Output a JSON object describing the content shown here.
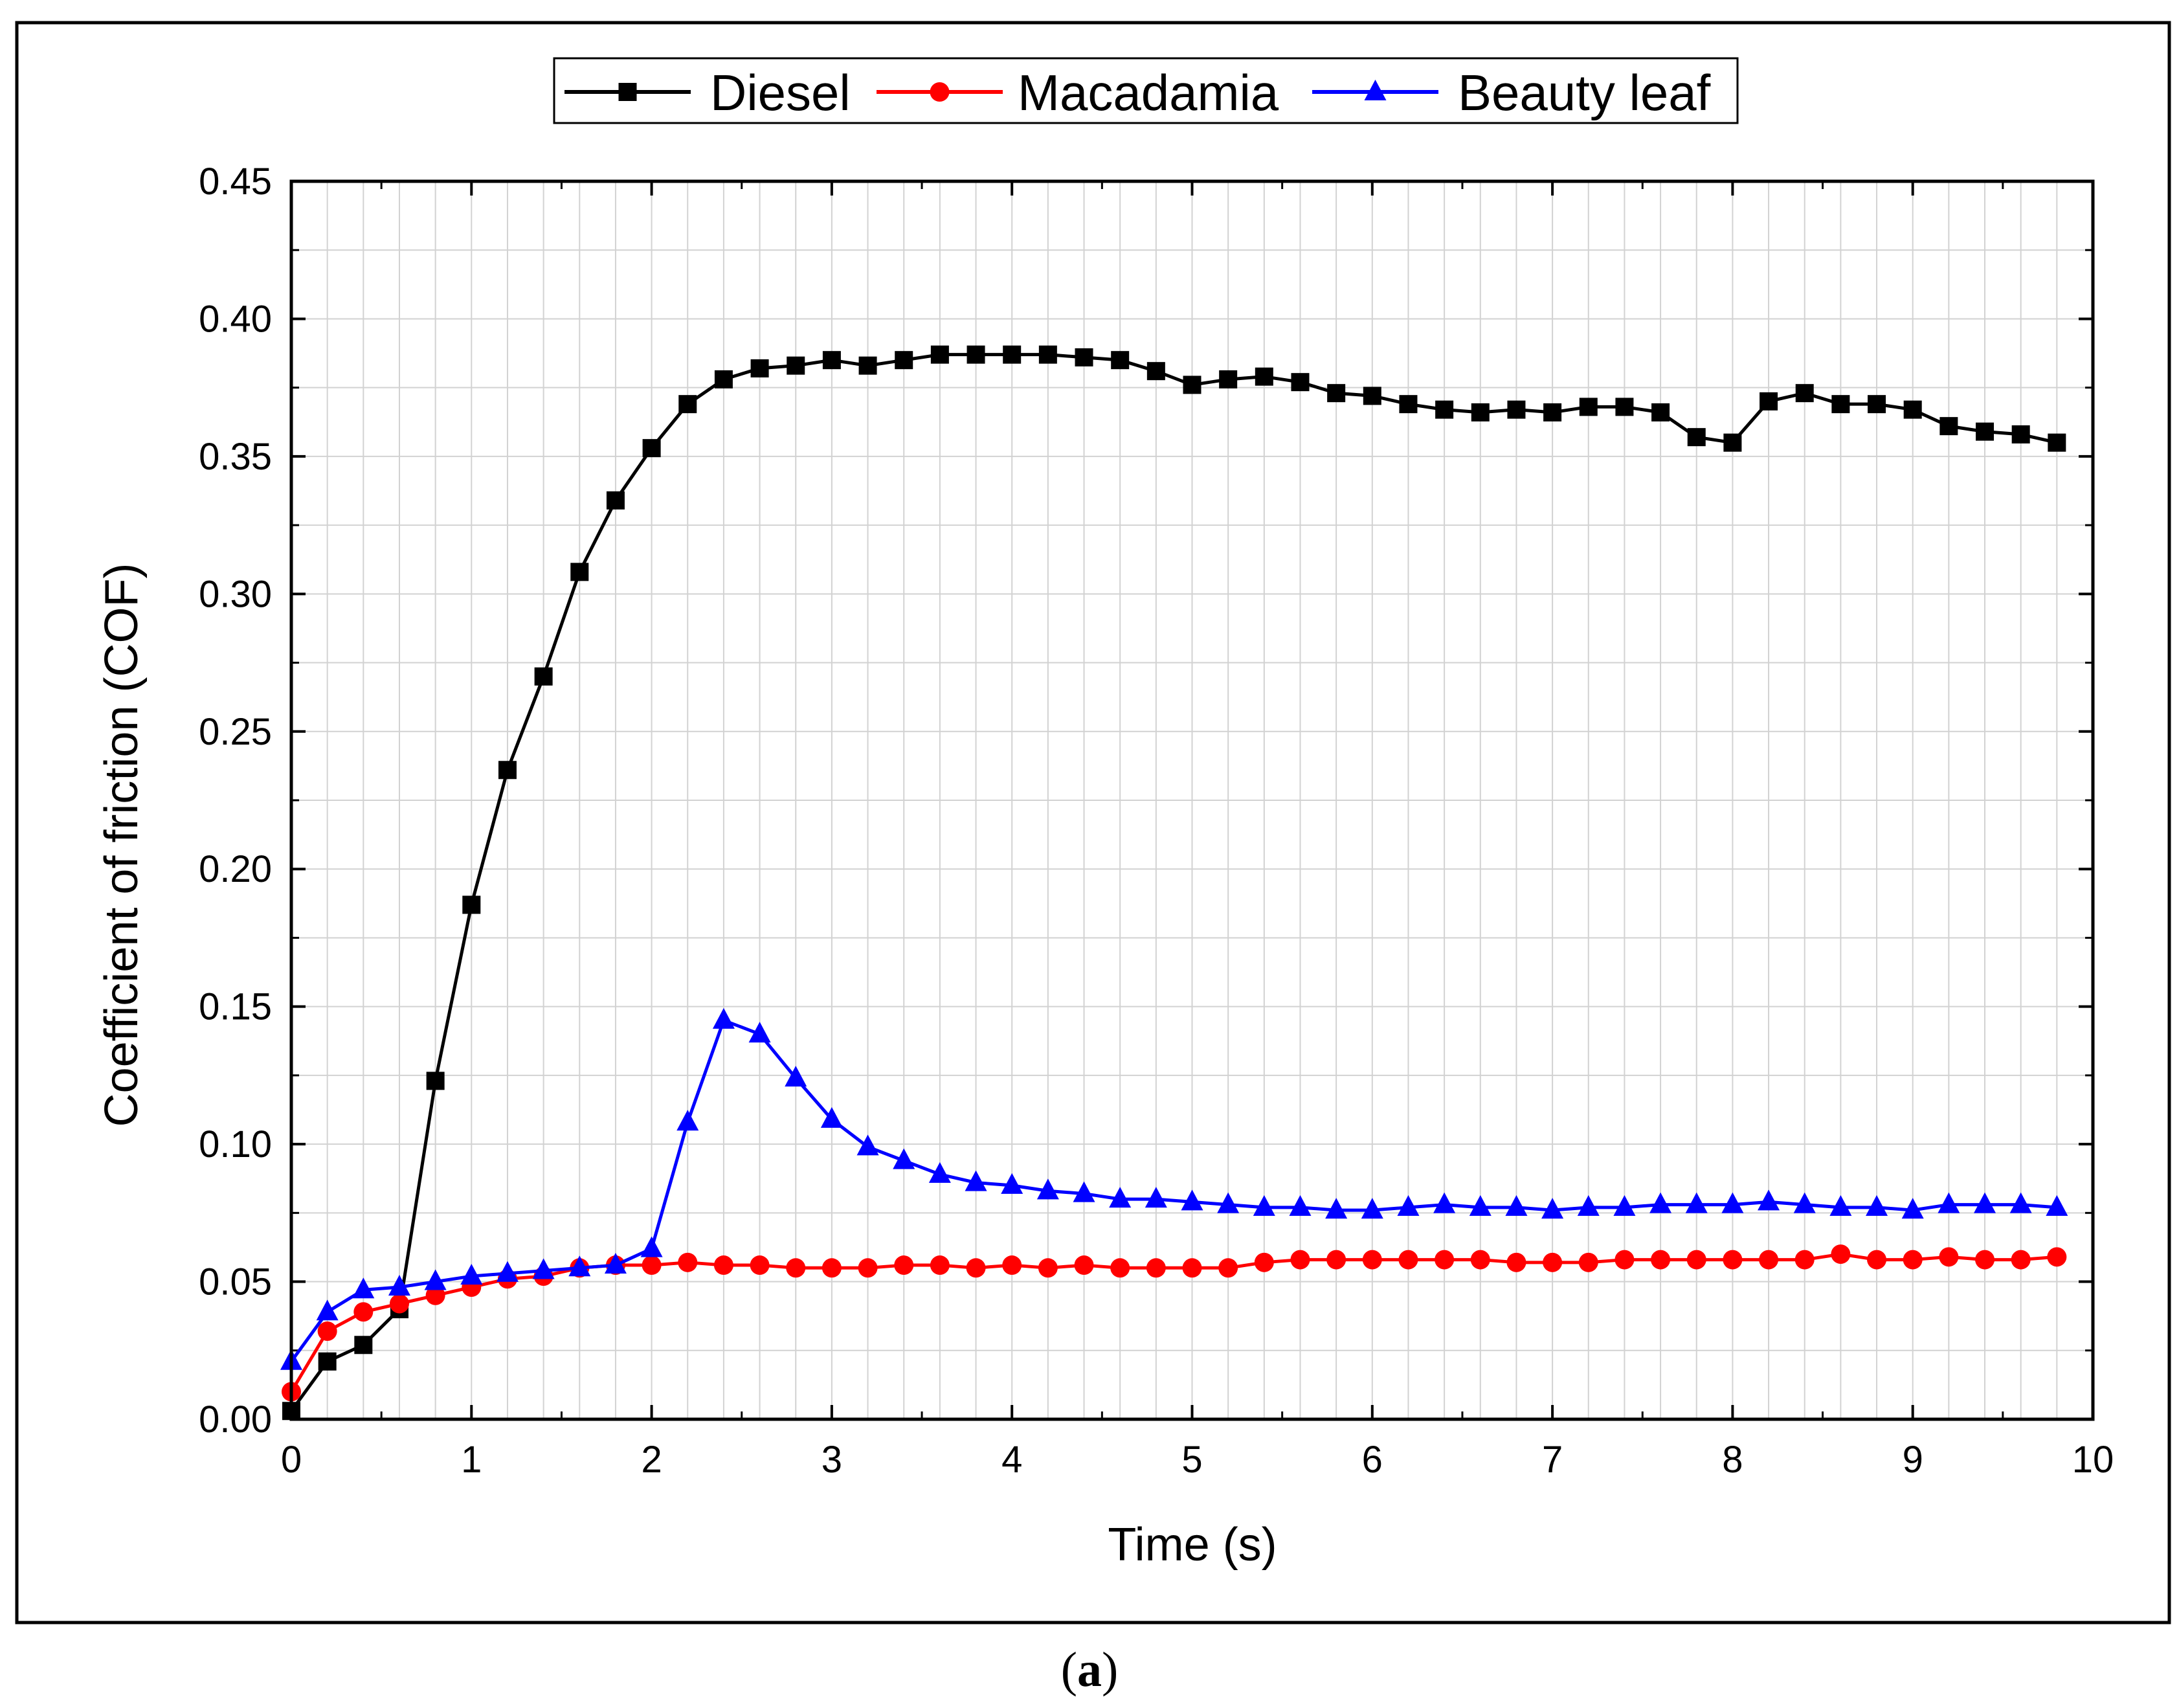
{
  "caption": {
    "open": "(",
    "label": "a",
    "close": ")"
  },
  "chart_data": {
    "type": "line",
    "title": "",
    "xlabel": "Time (s)",
    "ylabel": "Coefficient of friction (COF)",
    "xlim": [
      0,
      10
    ],
    "ylim": [
      0,
      0.45
    ],
    "xticks": [
      "0",
      "1",
      "2",
      "3",
      "4",
      "5",
      "6",
      "7",
      "8",
      "9",
      "10"
    ],
    "yticks": [
      "0.00",
      "0.05",
      "0.10",
      "0.15",
      "0.20",
      "0.25",
      "0.30",
      "0.35",
      "0.40",
      "0.45"
    ],
    "grid": true,
    "legend_position": "top-center",
    "x": [
      0.0,
      0.2,
      0.4,
      0.6,
      0.8,
      1.0,
      1.2,
      1.4,
      1.6,
      1.8,
      2.0,
      2.2,
      2.4,
      2.6,
      2.8,
      3.0,
      3.2,
      3.4,
      3.6,
      3.8,
      4.0,
      4.2,
      4.4,
      4.6,
      4.8,
      5.0,
      5.2,
      5.4,
      5.6,
      5.8,
      6.0,
      6.2,
      6.4,
      6.6,
      6.8,
      7.0,
      7.2,
      7.4,
      7.6,
      7.8,
      8.0,
      8.2,
      8.4,
      8.6,
      8.8,
      9.0,
      9.2,
      9.4,
      9.6,
      9.8
    ],
    "series": [
      {
        "name": "Diesel",
        "color": "#000000",
        "marker": "square",
        "values": [
          0.003,
          0.021,
          0.027,
          0.04,
          0.123,
          0.187,
          0.236,
          0.27,
          0.308,
          0.334,
          0.353,
          0.369,
          0.378,
          0.382,
          0.383,
          0.385,
          0.383,
          0.385,
          0.387,
          0.387,
          0.387,
          0.387,
          0.386,
          0.385,
          0.381,
          0.376,
          0.378,
          0.379,
          0.377,
          0.373,
          0.372,
          0.369,
          0.367,
          0.366,
          0.367,
          0.366,
          0.368,
          0.368,
          0.366,
          0.357,
          0.355,
          0.37,
          0.373,
          0.369,
          0.369,
          0.367,
          0.361,
          0.359,
          0.358,
          0.355
        ]
      },
      {
        "name": "Macadamia",
        "color": "#ff0000",
        "marker": "circle",
        "values": [
          0.01,
          0.032,
          0.039,
          0.042,
          0.045,
          0.048,
          0.051,
          0.052,
          0.055,
          0.056,
          0.056,
          0.057,
          0.056,
          0.056,
          0.055,
          0.055,
          0.055,
          0.056,
          0.056,
          0.055,
          0.056,
          0.055,
          0.056,
          0.055,
          0.055,
          0.055,
          0.055,
          0.057,
          0.058,
          0.058,
          0.058,
          0.058,
          0.058,
          0.058,
          0.057,
          0.057,
          0.057,
          0.058,
          0.058,
          0.058,
          0.058,
          0.058,
          0.058,
          0.06,
          0.058,
          0.058,
          0.059,
          0.058,
          0.058,
          0.059
        ]
      },
      {
        "name": "Beauty leaf",
        "color": "#0000ff",
        "marker": "triangle",
        "values": [
          0.021,
          0.039,
          0.047,
          0.048,
          0.05,
          0.052,
          0.053,
          0.054,
          0.055,
          0.056,
          0.062,
          0.108,
          0.145,
          0.14,
          0.124,
          0.109,
          0.099,
          0.094,
          0.089,
          0.086,
          0.085,
          0.083,
          0.082,
          0.08,
          0.08,
          0.079,
          0.078,
          0.077,
          0.077,
          0.076,
          0.076,
          0.077,
          0.078,
          0.077,
          0.077,
          0.076,
          0.077,
          0.077,
          0.078,
          0.078,
          0.078,
          0.079,
          0.078,
          0.077,
          0.077,
          0.076,
          0.078,
          0.078,
          0.078,
          0.077
        ]
      }
    ]
  }
}
